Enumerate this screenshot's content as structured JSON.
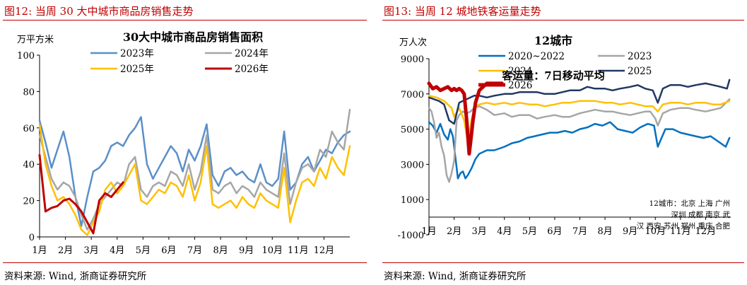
{
  "left": {
    "figure_title": "图12:   当周 30 大中城市商品房销售走势",
    "source": "资料来源:  Wind, 浙商证券研究所"
  },
  "right": {
    "figure_title": "图13:   当周 12 城地铁客运量走势",
    "source": "资料来源:  Wind, 浙商证券研究所"
  },
  "chart_data": [
    {
      "type": "line",
      "title": "30大中城市商品房销售面积",
      "ylabel": "万平方米",
      "xlabel": "",
      "ylim": [
        0,
        100
      ],
      "yticks": [
        0,
        20,
        40,
        60,
        80,
        100
      ],
      "x_ticks": [
        "1月",
        "2月",
        "3月",
        "4月",
        "5月",
        "6月",
        "7月",
        "8月",
        "9月",
        "10月",
        "11月",
        "12月"
      ],
      "x_unit": "week",
      "xlim": [
        1,
        53
      ],
      "grid": false,
      "legend": "top",
      "series": [
        {
          "name": "2023年",
          "color": "#5b8fc9",
          "width": 2.5,
          "values": [
            64,
            52,
            38,
            48,
            58,
            44,
            22,
            6,
            22,
            36,
            38,
            42,
            50,
            52,
            50,
            56,
            60,
            66,
            40,
            32,
            38,
            44,
            50,
            46,
            36,
            48,
            42,
            50,
            62,
            34,
            28,
            36,
            38,
            34,
            36,
            32,
            30,
            40,
            30,
            28,
            32,
            58,
            26,
            30,
            40,
            44,
            36,
            42,
            48,
            46,
            52,
            56,
            58
          ]
        },
        {
          "name": "2024年",
          "color": "#a6a6a6",
          "width": 2.5,
          "values": [
            56,
            44,
            32,
            26,
            30,
            28,
            22,
            12,
            4,
            10,
            18,
            22,
            26,
            30,
            28,
            40,
            44,
            26,
            22,
            28,
            30,
            28,
            36,
            34,
            28,
            40,
            26,
            36,
            56,
            26,
            24,
            28,
            30,
            24,
            28,
            26,
            22,
            30,
            26,
            24,
            22,
            46,
            18,
            30,
            38,
            40,
            36,
            48,
            44,
            58,
            52,
            48,
            70
          ]
        },
        {
          "name": "2025年",
          "color": "#ffc000",
          "width": 2.5,
          "values": [
            62,
            40,
            28,
            20,
            22,
            18,
            12,
            4,
            1,
            8,
            14,
            26,
            30,
            24,
            28,
            34,
            40,
            20,
            18,
            22,
            26,
            24,
            30,
            28,
            22,
            34,
            20,
            30,
            50,
            18,
            16,
            18,
            20,
            16,
            22,
            18,
            16,
            24,
            20,
            18,
            16,
            38,
            8,
            20,
            30,
            32,
            28,
            38,
            32,
            44,
            38,
            34,
            50
          ]
        },
        {
          "name": "2026年",
          "color": "#c00000",
          "width": 3,
          "values": [
            45,
            14,
            16,
            17,
            20,
            21,
            18,
            14,
            8,
            2,
            20,
            24,
            22,
            26,
            30,
            null,
            null,
            null,
            null,
            null,
            null,
            null,
            null,
            null,
            null,
            null,
            null,
            null,
            null,
            null,
            null,
            null,
            null,
            null,
            null,
            null,
            null,
            null,
            null,
            null,
            null,
            null,
            null,
            null,
            null,
            null,
            null,
            null,
            null,
            null,
            null,
            null,
            null
          ]
        }
      ]
    },
    {
      "type": "line",
      "title": "12城市",
      "subtitle": "客运量：7日移动平均",
      "ylabel": "万人次",
      "xlabel": "",
      "ylim": [
        -1000,
        9000
      ],
      "yticks": [
        -1000,
        1000,
        3000,
        5000,
        7000,
        9000
      ],
      "x_ticks": [
        "1月",
        "2月",
        "3月",
        "4月",
        "5月",
        "6月",
        "7月",
        "8月",
        "9月",
        "10月",
        "11月",
        "12月"
      ],
      "x_unit": "month",
      "xlim": [
        1,
        13
      ],
      "grid": false,
      "legend": "top",
      "annotation": "12城市：北京 上海 广州 深圳 成都 南京 武汉 西安 苏州 郑州 重庆 合肥",
      "series": [
        {
          "name": "2020~2022",
          "color": "#0070c0",
          "width": 2.5,
          "x": [
            1,
            1.15,
            1.3,
            1.45,
            1.6,
            1.75,
            1.85,
            1.95,
            2.05,
            2.15,
            2.25,
            2.35,
            2.45,
            2.55,
            2.7,
            2.85,
            3,
            3.3,
            3.6,
            4,
            4.3,
            4.6,
            4.9,
            5.2,
            5.5,
            5.8,
            6.1,
            6.4,
            6.7,
            7,
            7.3,
            7.6,
            7.9,
            8.2,
            8.5,
            8.8,
            9.1,
            9.4,
            9.7,
            9.95,
            10.1,
            10.25,
            10.4,
            10.7,
            11,
            11.3,
            11.6,
            11.9,
            12.2,
            12.5,
            12.8,
            12.95
          ],
          "values": [
            5400,
            5200,
            4800,
            5300,
            4700,
            4400,
            5000,
            4600,
            3400,
            2200,
            2500,
            2600,
            2200,
            2400,
            2800,
            3300,
            3600,
            3800,
            3800,
            4000,
            4200,
            4300,
            4500,
            4600,
            4700,
            4800,
            4800,
            4900,
            4800,
            5000,
            5100,
            5300,
            5200,
            5400,
            5000,
            4900,
            4800,
            5100,
            5300,
            5200,
            4000,
            4500,
            5000,
            5000,
            4800,
            4700,
            4600,
            4500,
            4600,
            4300,
            4000,
            4500
          ]
        },
        {
          "name": "2023",
          "color": "#a6a6a6",
          "width": 2.5,
          "x": [
            1,
            1.1,
            1.2,
            1.3,
            1.4,
            1.5,
            1.6,
            1.7,
            1.8,
            1.9,
            2,
            2.1,
            2.2,
            2.35,
            2.5,
            2.65,
            2.8,
            3,
            3.3,
            3.6,
            4,
            4.3,
            4.6,
            5,
            5.3,
            5.6,
            6,
            6.3,
            6.6,
            7,
            7.3,
            7.6,
            8,
            8.3,
            8.6,
            9,
            9.3,
            9.6,
            9.8,
            10,
            10.1,
            10.3,
            10.6,
            11,
            11.3,
            11.6,
            12,
            12.3,
            12.6,
            12.95
          ],
          "values": [
            6200,
            6000,
            5400,
            4500,
            4800,
            4000,
            3500,
            2400,
            2000,
            2500,
            3200,
            5500,
            5800,
            6000,
            5900,
            6000,
            6200,
            6300,
            6100,
            5800,
            5900,
            5700,
            5800,
            5800,
            5600,
            5700,
            5800,
            5700,
            5700,
            5900,
            6000,
            6100,
            6000,
            6000,
            5900,
            5800,
            5900,
            6000,
            6000,
            5600,
            5200,
            5900,
            6100,
            6200,
            6200,
            6100,
            6000,
            6100,
            6200,
            6700
          ]
        },
        {
          "name": "2024",
          "color": "#ffc000",
          "width": 2.5,
          "x": [
            1,
            1.3,
            1.6,
            1.9,
            2,
            2.2,
            2.4,
            2.55,
            2.7,
            2.85,
            3,
            3.3,
            3.6,
            4,
            4.3,
            4.6,
            5,
            5.3,
            5.6,
            6,
            6.3,
            6.6,
            7,
            7.3,
            7.6,
            8,
            8.3,
            8.6,
            9,
            9.3,
            9.6,
            9.9,
            10.1,
            10.3,
            10.6,
            11,
            11.3,
            11.6,
            12,
            12.3,
            12.6,
            12.95
          ],
          "values": [
            6900,
            6800,
            6600,
            6200,
            5700,
            6200,
            5500,
            4200,
            5600,
            6300,
            6400,
            6500,
            6400,
            6500,
            6400,
            6500,
            6400,
            6400,
            6300,
            6400,
            6500,
            6500,
            6600,
            6600,
            6600,
            6500,
            6500,
            6400,
            6500,
            6400,
            6300,
            6300,
            6000,
            6400,
            6500,
            6500,
            6400,
            6500,
            6500,
            6400,
            6400,
            6600
          ]
        },
        {
          "name": "2025",
          "color": "#203864",
          "width": 2.5,
          "x": [
            1,
            1.2,
            1.4,
            1.6,
            1.8,
            2,
            2.2,
            2.35,
            2.5,
            2.65,
            2.8,
            3,
            3.3,
            3.6,
            4,
            4.3,
            4.6,
            5,
            5.3,
            5.6,
            6,
            6.3,
            6.6,
            7,
            7.3,
            7.6,
            8,
            8.3,
            8.6,
            9,
            9.3,
            9.6,
            9.9,
            10.1,
            10.3,
            10.6,
            11,
            11.3,
            11.6,
            12,
            12.3,
            12.6,
            12.85,
            12.95
          ],
          "values": [
            6800,
            6700,
            6600,
            6400,
            5500,
            5300,
            6500,
            6600,
            6700,
            6800,
            6900,
            6900,
            6800,
            6900,
            7000,
            7000,
            7100,
            7100,
            7100,
            7000,
            7000,
            7100,
            7200,
            7200,
            7400,
            7300,
            7300,
            7200,
            7300,
            7400,
            7500,
            7300,
            7200,
            6500,
            7300,
            7500,
            7500,
            7400,
            7500,
            7600,
            7500,
            7400,
            7300,
            7800
          ]
        },
        {
          "name": "2026",
          "color": "#c00000",
          "width": 5,
          "x": [
            1,
            1.15,
            1.3,
            1.45,
            1.6,
            1.75,
            1.9,
            2,
            2.1,
            2.2,
            2.3,
            2.4,
            2.5,
            2.55,
            2.6,
            2.65,
            2.75,
            2.85,
            3,
            3.15,
            3.3,
            3.5,
            3.7,
            3.9
          ],
          "values": [
            7600,
            7300,
            7400,
            7200,
            7300,
            7400,
            7200,
            7300,
            7200,
            7300,
            7200,
            7000,
            5500,
            4500,
            3600,
            4200,
            5500,
            6500,
            7200,
            7400,
            7600,
            7600,
            7600,
            7600
          ]
        }
      ]
    }
  ]
}
